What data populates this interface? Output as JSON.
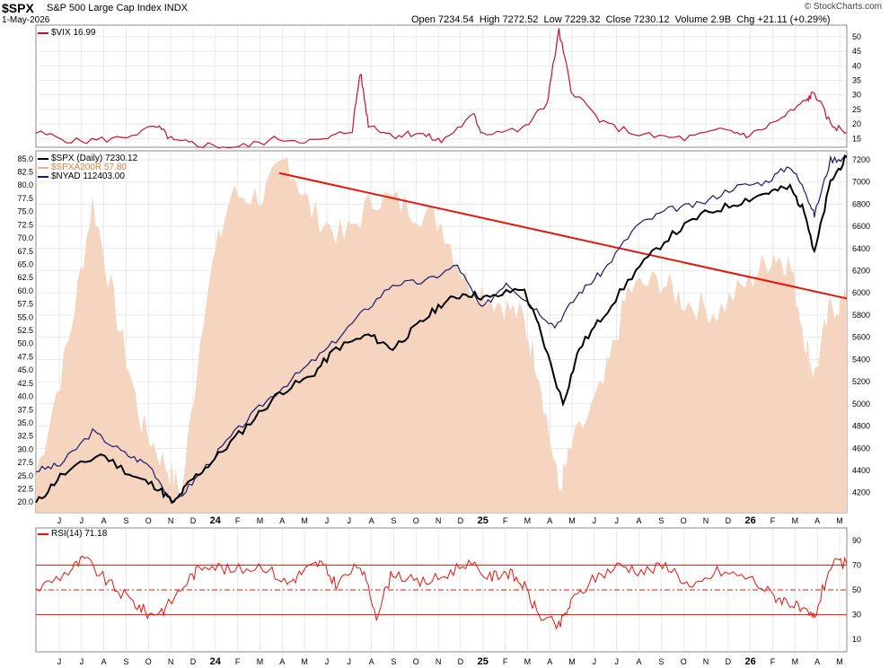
{
  "header": {
    "symbol": "$SPX",
    "description": "S&P 500 Large Cap Index",
    "exchange": "INDX",
    "date": "1-May-2026",
    "open_label": "Open",
    "open": "7234.54",
    "high_label": "High",
    "high": "7272.52",
    "low_label": "Low",
    "low": "7229.32",
    "close_label": "Close",
    "close": "7230.12",
    "volume_label": "Volume",
    "volume": "2.9B",
    "chg_label": "Chg",
    "chg": "+21.11 (+0.29%)",
    "brand": "© StockCharts.com"
  },
  "colors": {
    "vix": "#c8102e",
    "spx": "#000000",
    "spxa200r": "#f5d5c0",
    "spxa200r_text": "#e08040",
    "nyad": "#191970",
    "trendline": "#e8140a",
    "rsi": "#e8140a",
    "grid": "#dddddd"
  },
  "chart_data": [
    {
      "type": "line",
      "panel": "top",
      "legend": "$VIX 16.99",
      "series": [
        {
          "name": "$VIX",
          "last": 16.99,
          "points": [
            [
              0,
              17
            ],
            [
              0.05,
              14
            ],
            [
              0.1,
              15
            ],
            [
              0.15,
              19
            ],
            [
              0.17,
              14
            ],
            [
              0.2,
              13
            ],
            [
              0.25,
              12
            ],
            [
              0.3,
              15
            ],
            [
              0.35,
              14
            ],
            [
              0.39,
              18
            ],
            [
              0.4,
              38
            ],
            [
              0.41,
              20
            ],
            [
              0.44,
              16
            ],
            [
              0.47,
              17
            ],
            [
              0.5,
              14
            ],
            [
              0.54,
              23
            ],
            [
              0.55,
              17
            ],
            [
              0.6,
              18
            ],
            [
              0.63,
              27
            ],
            [
              0.645,
              52
            ],
            [
              0.66,
              32
            ],
            [
              0.7,
              20
            ],
            [
              0.75,
              16
            ],
            [
              0.8,
              15
            ],
            [
              0.85,
              18
            ],
            [
              0.88,
              16
            ],
            [
              0.92,
              22
            ],
            [
              0.95,
              28
            ],
            [
              0.96,
              31
            ],
            [
              0.98,
              20
            ],
            [
              1,
              17
            ]
          ]
        }
      ],
      "yticks": [
        15,
        20,
        25,
        30,
        35,
        40,
        45,
        50
      ],
      "ylim": [
        12,
        54
      ]
    },
    {
      "type": "line",
      "panel": "main",
      "legend": [
        "$SPX (Daily) 7230.12",
        "$SPXA200R 57.80",
        "$NYAD 112403.00"
      ],
      "series": [
        {
          "name": "$SPX (Daily)",
          "last": 7230.12,
          "axis": "right",
          "points": [
            [
              0,
              4100
            ],
            [
              0.03,
              4350
            ],
            [
              0.08,
              4550
            ],
            [
              0.12,
              4350
            ],
            [
              0.15,
              4250
            ],
            [
              0.17,
              4100
            ],
            [
              0.19,
              4300
            ],
            [
              0.22,
              4500
            ],
            [
              0.26,
              4800
            ],
            [
              0.3,
              5100
            ],
            [
              0.34,
              5250
            ],
            [
              0.37,
              5500
            ],
            [
              0.41,
              5620
            ],
            [
              0.44,
              5500
            ],
            [
              0.47,
              5700
            ],
            [
              0.5,
              5900
            ],
            [
              0.53,
              6000
            ],
            [
              0.56,
              5950
            ],
            [
              0.6,
              6050
            ],
            [
              0.62,
              5700
            ],
            [
              0.65,
              5000
            ],
            [
              0.67,
              5500
            ],
            [
              0.7,
              5800
            ],
            [
              0.74,
              6200
            ],
            [
              0.78,
              6500
            ],
            [
              0.82,
              6700
            ],
            [
              0.86,
              6800
            ],
            [
              0.9,
              6900
            ],
            [
              0.93,
              6950
            ],
            [
              0.95,
              6700
            ],
            [
              0.96,
              6350
            ],
            [
              0.98,
              7000
            ],
            [
              1,
              7230
            ]
          ]
        },
        {
          "name": "$SPXA200R",
          "last": 57.8,
          "axis": "left",
          "points": [
            [
              0,
              25
            ],
            [
              0.04,
              50
            ],
            [
              0.07,
              77
            ],
            [
              0.1,
              55
            ],
            [
              0.13,
              35
            ],
            [
              0.16,
              27
            ],
            [
              0.18,
              22
            ],
            [
              0.21,
              60
            ],
            [
              0.24,
              78
            ],
            [
              0.28,
              78
            ],
            [
              0.31,
              85
            ],
            [
              0.34,
              75
            ],
            [
              0.38,
              70
            ],
            [
              0.42,
              78
            ],
            [
              0.46,
              76
            ],
            [
              0.5,
              73
            ],
            [
              0.53,
              62
            ],
            [
              0.57,
              58
            ],
            [
              0.6,
              55
            ],
            [
              0.62,
              45
            ],
            [
              0.645,
              22
            ],
            [
              0.66,
              30
            ],
            [
              0.7,
              42
            ],
            [
              0.73,
              60
            ],
            [
              0.77,
              62
            ],
            [
              0.8,
              58
            ],
            [
              0.84,
              56
            ],
            [
              0.88,
              62
            ],
            [
              0.91,
              67
            ],
            [
              0.93,
              65
            ],
            [
              0.95,
              50
            ],
            [
              0.96,
              44
            ],
            [
              0.98,
              57
            ],
            [
              1,
              58
            ]
          ]
        },
        {
          "name": "$NYAD",
          "last": 112403.0,
          "axis": "right",
          "points": [
            [
              0,
              4400
            ],
            [
              0.03,
              4450
            ],
            [
              0.07,
              4750
            ],
            [
              0.11,
              4550
            ],
            [
              0.14,
              4450
            ],
            [
              0.17,
              4100
            ],
            [
              0.2,
              4350
            ],
            [
              0.24,
              4700
            ],
            [
              0.28,
              5000
            ],
            [
              0.32,
              5250
            ],
            [
              0.36,
              5500
            ],
            [
              0.4,
              5800
            ],
            [
              0.44,
              6080
            ],
            [
              0.48,
              6100
            ],
            [
              0.52,
              6250
            ],
            [
              0.55,
              5850
            ],
            [
              0.58,
              6100
            ],
            [
              0.61,
              5900
            ],
            [
              0.64,
              5700
            ],
            [
              0.67,
              6000
            ],
            [
              0.7,
              6200
            ],
            [
              0.74,
              6600
            ],
            [
              0.78,
              6750
            ],
            [
              0.82,
              6800
            ],
            [
              0.86,
              6950
            ],
            [
              0.9,
              7000
            ],
            [
              0.93,
              7150
            ],
            [
              0.95,
              6900
            ],
            [
              0.96,
              6700
            ],
            [
              0.98,
              7200
            ],
            [
              1,
              7220
            ]
          ]
        }
      ],
      "trendline": {
        "points": [
          [
            0.3,
            7080
          ],
          [
            1,
            5950
          ]
        ]
      },
      "yticks_left": [
        20.0,
        22.5,
        25.0,
        27.5,
        30.0,
        32.5,
        35.0,
        37.5,
        40.0,
        42.5,
        45.0,
        47.5,
        50.0,
        52.5,
        55.0,
        57.5,
        60.0,
        62.5,
        65.0,
        67.5,
        70.0,
        72.5,
        75.0,
        77.5,
        80.0,
        82.5,
        85.0
      ],
      "yticks_right": [
        4200,
        4400,
        4600,
        4800,
        5000,
        5200,
        5400,
        5600,
        5800,
        6000,
        6200,
        6400,
        6600,
        6800,
        7000,
        7200
      ],
      "ylim_left": [
        18,
        86.5
      ],
      "ylim_right": [
        4020,
        7280
      ],
      "xticks": [
        "J",
        "J",
        "A",
        "S",
        "O",
        "N",
        "D",
        "24",
        "F",
        "M",
        "A",
        "M",
        "J",
        "J",
        "A",
        "S",
        "O",
        "N",
        "D",
        "25",
        "F",
        "M",
        "A",
        "M",
        "J",
        "J",
        "A",
        "S",
        "O",
        "N",
        "D",
        "26",
        "F",
        "M",
        "A",
        "M"
      ]
    },
    {
      "type": "line",
      "panel": "bottom",
      "legend": "RSI(14) 71.18",
      "series": [
        {
          "name": "RSI(14)",
          "last": 71.18,
          "points": [
            [
              0,
              50
            ],
            [
              0.04,
              65
            ],
            [
              0.06,
              75
            ],
            [
              0.09,
              55
            ],
            [
              0.12,
              40
            ],
            [
              0.14,
              30
            ],
            [
              0.16,
              35
            ],
            [
              0.19,
              60
            ],
            [
              0.21,
              72
            ],
            [
              0.24,
              65
            ],
            [
              0.28,
              70
            ],
            [
              0.31,
              55
            ],
            [
              0.33,
              65
            ],
            [
              0.35,
              72
            ],
            [
              0.37,
              55
            ],
            [
              0.4,
              70
            ],
            [
              0.42,
              30
            ],
            [
              0.44,
              65
            ],
            [
              0.47,
              55
            ],
            [
              0.5,
              60
            ],
            [
              0.53,
              72
            ],
            [
              0.56,
              60
            ],
            [
              0.58,
              65
            ],
            [
              0.6,
              55
            ],
            [
              0.62,
              30
            ],
            [
              0.645,
              20
            ],
            [
              0.66,
              40
            ],
            [
              0.69,
              60
            ],
            [
              0.72,
              70
            ],
            [
              0.75,
              65
            ],
            [
              0.78,
              70
            ],
            [
              0.81,
              50
            ],
            [
              0.84,
              65
            ],
            [
              0.88,
              60
            ],
            [
              0.91,
              45
            ],
            [
              0.93,
              40
            ],
            [
              0.95,
              30
            ],
            [
              0.96,
              28
            ],
            [
              0.98,
              70
            ],
            [
              1,
              71
            ]
          ]
        }
      ],
      "yticks": [
        10,
        30,
        50,
        70,
        90
      ],
      "ylim": [
        0,
        100
      ],
      "levels": [
        30,
        50,
        70
      ]
    }
  ]
}
